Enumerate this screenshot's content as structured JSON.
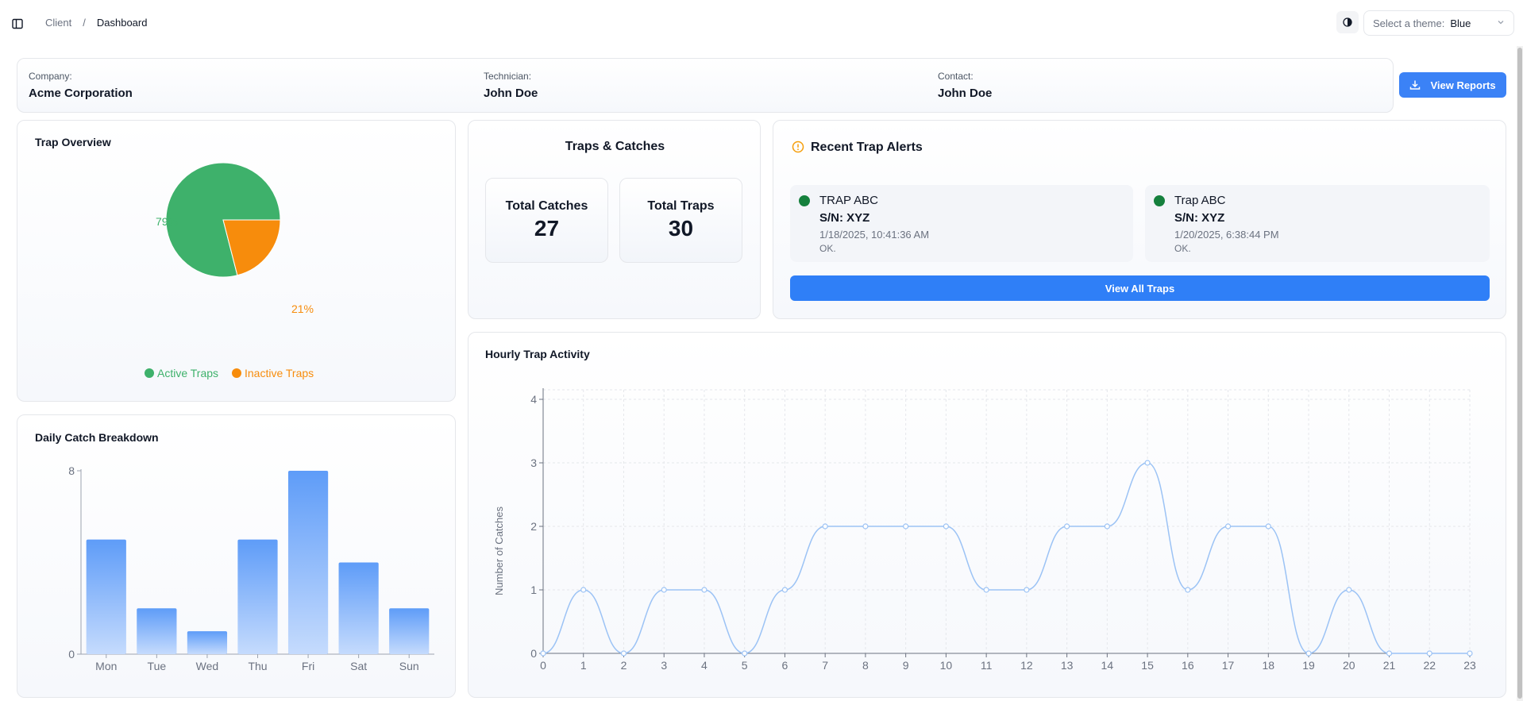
{
  "breadcrumb": {
    "items": [
      "Client",
      "Dashboard"
    ],
    "separator": "/"
  },
  "theme_select": {
    "label": "Select a theme:",
    "value": "Blue"
  },
  "info": {
    "company_label": "Company:",
    "company_value": "Acme Corporation",
    "technician_label": "Technician:",
    "technician_value": "John Doe",
    "contact_label": "Contact:",
    "contact_value": "John Doe"
  },
  "reports_button": {
    "label": "View Reports"
  },
  "trap_overview": {
    "title": "Trap Overview",
    "chart_data": {
      "type": "pie",
      "title": "Trap Overview",
      "slices": [
        {
          "label": "Active Traps",
          "value": 79,
          "display": "79%",
          "color": "#3eb16b"
        },
        {
          "label": "Inactive Traps",
          "value": 21,
          "display": "21%",
          "color": "#f78c0c"
        }
      ]
    }
  },
  "traps_catches": {
    "title": "Traps & Catches",
    "catches_label": "Total Catches",
    "catches_value": "27",
    "traps_label": "Total Traps",
    "traps_value": "30"
  },
  "alerts": {
    "title": "Recent Trap Alerts",
    "items": [
      {
        "name": "TRAP ABC",
        "serial": "S/N: XYZ",
        "time": "1/18/2025, 10:41:36 AM",
        "status": "OK.",
        "status_color": "#15803d"
      },
      {
        "name": "Trap ABC",
        "serial": "S/N: XYZ",
        "time": "1/20/2025, 6:38:44 PM",
        "status": "OK.",
        "status_color": "#15803d"
      }
    ],
    "view_all_label": "View All Traps"
  },
  "daily": {
    "title": "Daily Catch Breakdown",
    "chart_data": {
      "type": "bar",
      "title": "Daily Catch Breakdown",
      "categories": [
        "Mon",
        "Tue",
        "Wed",
        "Thu",
        "Fri",
        "Sat",
        "Sun"
      ],
      "values": [
        5,
        2,
        1,
        5,
        8,
        4,
        2
      ],
      "ylim": [
        0,
        8
      ],
      "yticks": [
        0,
        8
      ],
      "xlabel": "",
      "ylabel": ""
    }
  },
  "hourly": {
    "title": "Hourly Trap Activity",
    "chart_data": {
      "type": "line",
      "title": "Hourly Trap Activity",
      "x": [
        0,
        1,
        2,
        3,
        4,
        5,
        6,
        7,
        8,
        9,
        10,
        11,
        12,
        13,
        14,
        15,
        16,
        17,
        18,
        19,
        20,
        21,
        22,
        23
      ],
      "values": [
        0,
        1,
        0,
        1,
        1,
        0,
        1,
        2,
        2,
        2,
        2,
        1,
        1,
        2,
        2,
        3,
        1,
        2,
        2,
        0,
        1,
        0,
        0,
        0
      ],
      "ylim": [
        0,
        4
      ],
      "yticks": [
        0,
        1,
        2,
        3,
        4
      ],
      "xlabel": "",
      "ylabel": "Number of Catches",
      "grid": true
    }
  }
}
